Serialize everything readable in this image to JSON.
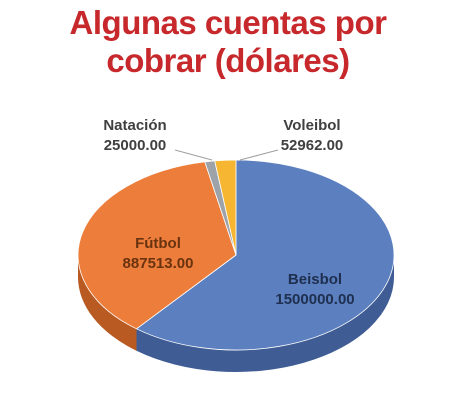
{
  "chart_data": {
    "type": "pie",
    "title_line1": "Algunas cuentas por",
    "title_line2": "cobrar (dólares)",
    "three_d": true,
    "slices": [
      {
        "name": "Beisbol",
        "value": 1500000.0,
        "value_label": "1500000.00",
        "color": "#5b7fbf",
        "side_color": "#3f5d94"
      },
      {
        "name": "Fútbol",
        "value": 887513.0,
        "value_label": "887513.00",
        "color": "#ed7d3a",
        "side_color": "#b85a22"
      },
      {
        "name": "Natación",
        "value": 25000.0,
        "value_label": "25000.00",
        "color": "#9ea3aa",
        "side_color": "#6f747a"
      },
      {
        "name": "Voleibol",
        "value": 52962.0,
        "value_label": "52962.00",
        "color": "#f6b632",
        "side_color": "#c48b17"
      }
    ],
    "label_colors": {
      "Beisbol": "#1f2f4f",
      "Fútbol": "#6a3310",
      "Natación": "#404040",
      "Voleibol": "#404040"
    }
  }
}
